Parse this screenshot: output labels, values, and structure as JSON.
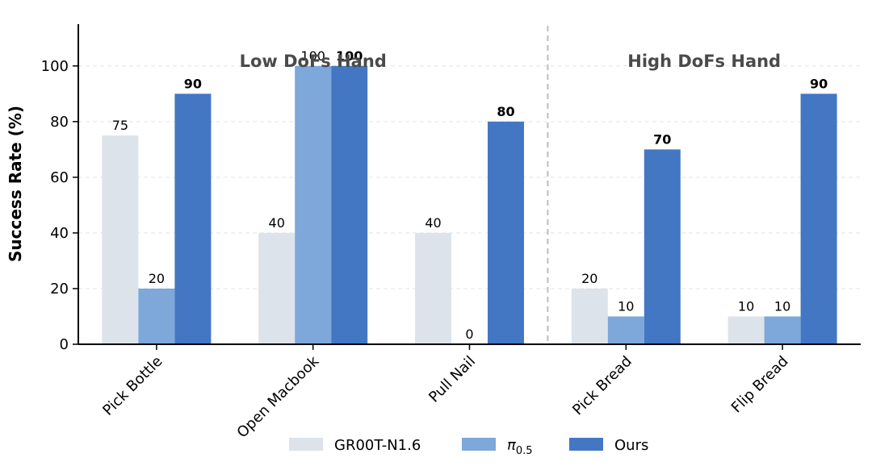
{
  "chart_data": {
    "type": "bar",
    "title": "",
    "xlabel": "",
    "ylabel": "Success Rate (%)",
    "ylim": [
      0,
      115
    ],
    "yticks": [
      0,
      20,
      40,
      60,
      80,
      100
    ],
    "grid": "y-dashed",
    "categories": [
      "Pick Bottle",
      "Open Macbook",
      "Pull Nail",
      "Pick Bread",
      "Flip Bread"
    ],
    "groups": [
      {
        "label": "Low DoFs Hand",
        "categories": [
          "Pick Bottle",
          "Open Macbook",
          "Pull Nail"
        ]
      },
      {
        "label": "High DoFs Hand",
        "categories": [
          "Pick Bread",
          "Flip Bread"
        ]
      }
    ],
    "series": [
      {
        "name": "GR00T-N1.6",
        "color": "#dde3ea",
        "values": [
          75,
          40,
          40,
          20,
          10
        ],
        "label_bold": false
      },
      {
        "name": "π0.5",
        "legend_base": "π",
        "legend_sub": "0.5",
        "color": "#7ea7da",
        "values": [
          20,
          100,
          0,
          10,
          10
        ],
        "label_bold": false
      },
      {
        "name": "Ours",
        "color": "#4377c4",
        "values": [
          90,
          100,
          80,
          70,
          90
        ],
        "label_bold": true
      }
    ],
    "legend_position": "bottom-center"
  }
}
